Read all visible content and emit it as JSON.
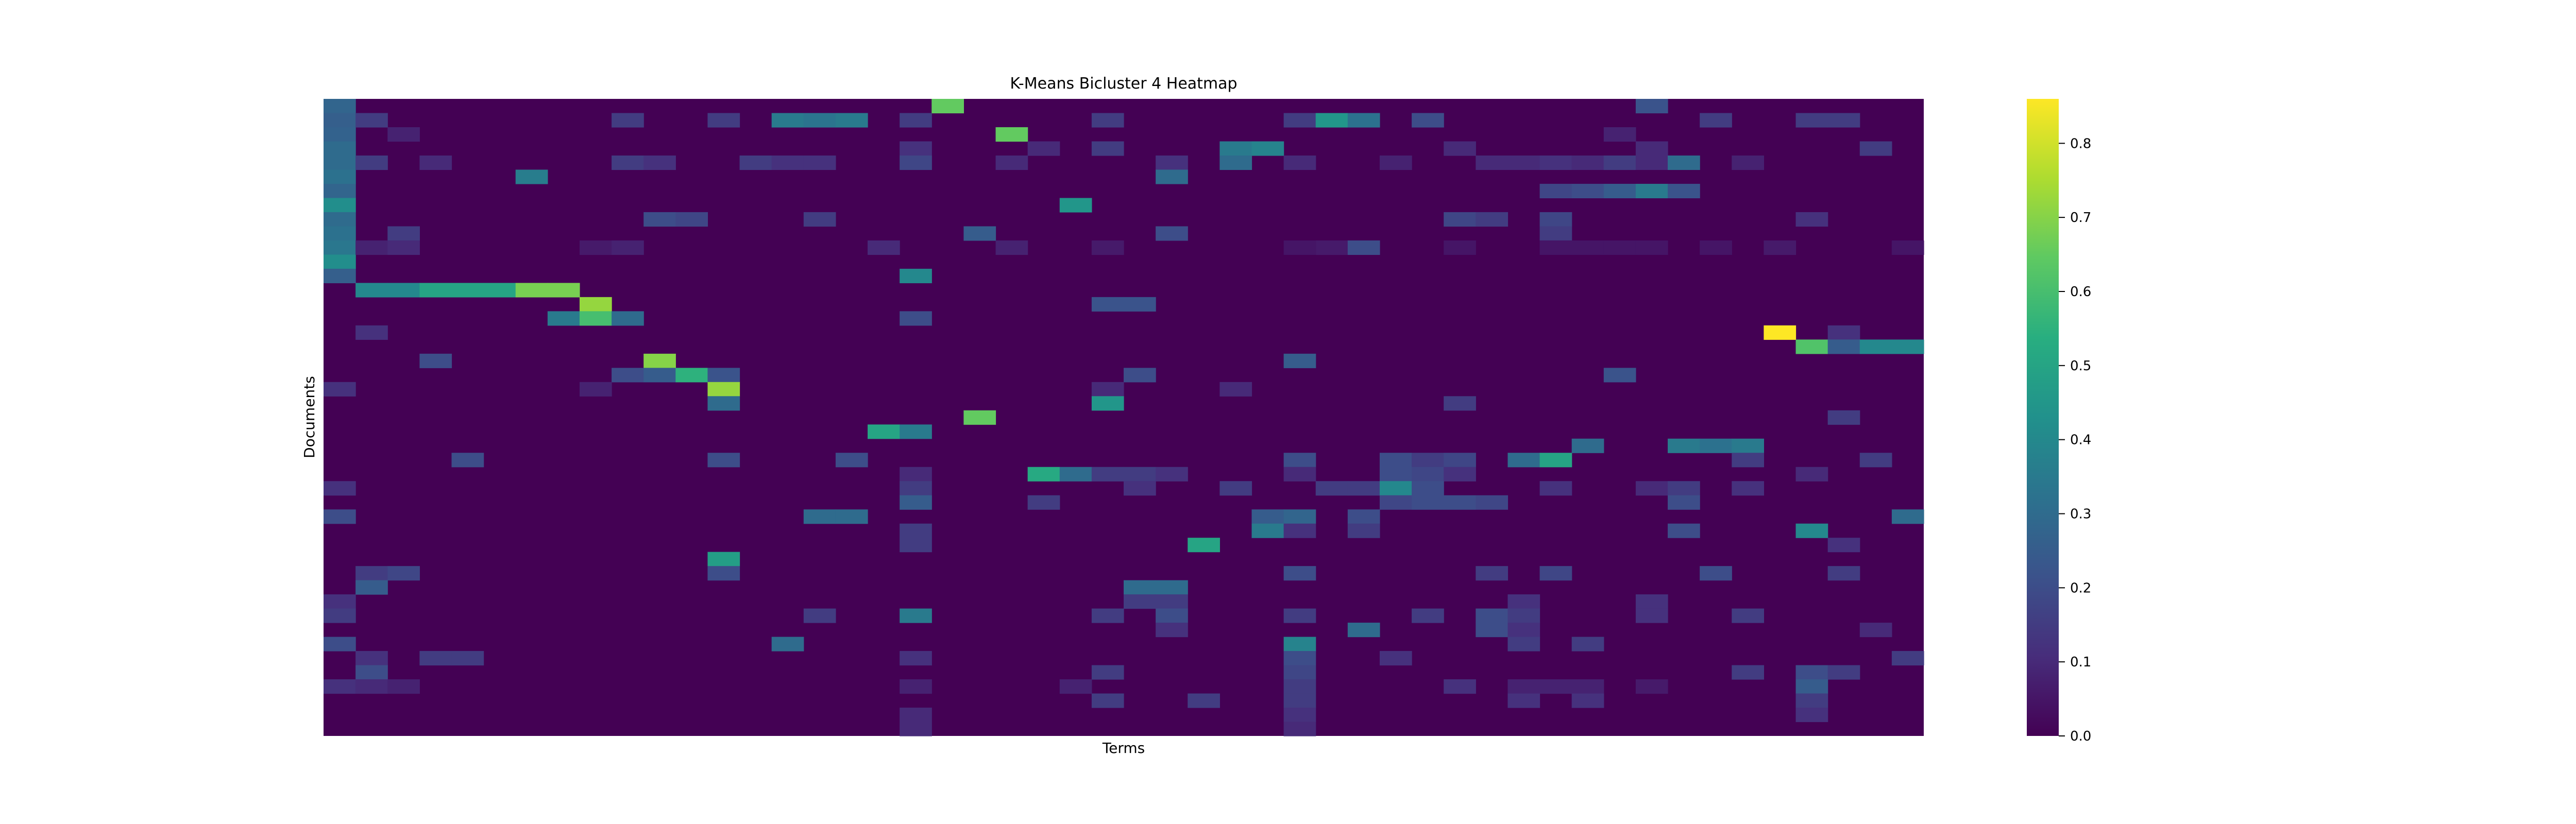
{
  "chart_data": {
    "type": "heatmap",
    "title": "K-Means Bicluster 4 Heatmap",
    "xlabel": "Terms",
    "ylabel": "Documents",
    "colormap": "viridis",
    "vmin": 0.0,
    "vmax": 0.86,
    "colorbar_ticks": [
      0.0,
      0.1,
      0.2,
      0.3,
      0.4,
      0.5,
      0.6,
      0.7,
      0.8
    ],
    "colorbar_tick_labels": [
      "0.0",
      "0.1",
      "0.2",
      "0.3",
      "0.4",
      "0.5",
      "0.6",
      "0.7",
      "0.8"
    ],
    "n_rows": 45,
    "n_cols": 50,
    "x_tick_labels_shown": false,
    "y_tick_labels_shown": false,
    "cells": [
      [
        0,
        0,
        0.28
      ],
      [
        1,
        0,
        0.26
      ],
      [
        2,
        0,
        0.27
      ],
      [
        3,
        0,
        0.3
      ],
      [
        4,
        0,
        0.3
      ],
      [
        5,
        0,
        0.32
      ],
      [
        6,
        0,
        0.28
      ],
      [
        7,
        0,
        0.42
      ],
      [
        8,
        0,
        0.3
      ],
      [
        9,
        0,
        0.32
      ],
      [
        10,
        0,
        0.34
      ],
      [
        11,
        0,
        0.42
      ],
      [
        12,
        0,
        0.26
      ],
      [
        0,
        19,
        0.65
      ],
      [
        0,
        41,
        0.22
      ],
      [
        1,
        14,
        0.35
      ],
      [
        1,
        15,
        0.33
      ],
      [
        1,
        16,
        0.35
      ],
      [
        1,
        18,
        0.15
      ],
      [
        1,
        9,
        0.15
      ],
      [
        1,
        12,
        0.15
      ],
      [
        1,
        24,
        0.15
      ],
      [
        1,
        30,
        0.15
      ],
      [
        1,
        31,
        0.45
      ],
      [
        1,
        32,
        0.32
      ],
      [
        1,
        34,
        0.2
      ],
      [
        1,
        43,
        0.15
      ],
      [
        1,
        46,
        0.15
      ],
      [
        1,
        47,
        0.15
      ],
      [
        1,
        1,
        0.15
      ],
      [
        2,
        2,
        0.08
      ],
      [
        2,
        21,
        0.65
      ],
      [
        2,
        40,
        0.08
      ],
      [
        3,
        22,
        0.1
      ],
      [
        3,
        24,
        0.15
      ],
      [
        3,
        28,
        0.35
      ],
      [
        3,
        29,
        0.38
      ],
      [
        3,
        35,
        0.1
      ],
      [
        3,
        41,
        0.1
      ],
      [
        3,
        48,
        0.15
      ],
      [
        3,
        18,
        0.12
      ],
      [
        4,
        1,
        0.15
      ],
      [
        4,
        3,
        0.1
      ],
      [
        4,
        9,
        0.15
      ],
      [
        4,
        10,
        0.12
      ],
      [
        4,
        13,
        0.15
      ],
      [
        4,
        14,
        0.12
      ],
      [
        4,
        15,
        0.12
      ],
      [
        4,
        18,
        0.18
      ],
      [
        4,
        21,
        0.1
      ],
      [
        4,
        26,
        0.12
      ],
      [
        4,
        28,
        0.3
      ],
      [
        4,
        30,
        0.1
      ],
      [
        4,
        33,
        0.08
      ],
      [
        4,
        36,
        0.1
      ],
      [
        4,
        37,
        0.1
      ],
      [
        4,
        38,
        0.12
      ],
      [
        4,
        39,
        0.1
      ],
      [
        4,
        40,
        0.15
      ],
      [
        4,
        41,
        0.1
      ],
      [
        4,
        42,
        0.3
      ],
      [
        4,
        44,
        0.08
      ],
      [
        5,
        6,
        0.36
      ],
      [
        5,
        26,
        0.3
      ],
      [
        6,
        38,
        0.18
      ],
      [
        6,
        39,
        0.2
      ],
      [
        6,
        40,
        0.25
      ],
      [
        6,
        41,
        0.35
      ],
      [
        6,
        42,
        0.22
      ],
      [
        7,
        23,
        0.45
      ],
      [
        8,
        10,
        0.2
      ],
      [
        8,
        11,
        0.18
      ],
      [
        8,
        15,
        0.15
      ],
      [
        8,
        35,
        0.18
      ],
      [
        8,
        36,
        0.15
      ],
      [
        8,
        38,
        0.18
      ],
      [
        8,
        46,
        0.12
      ],
      [
        9,
        2,
        0.15
      ],
      [
        9,
        20,
        0.25
      ],
      [
        9,
        26,
        0.2
      ],
      [
        9,
        38,
        0.15
      ],
      [
        10,
        1,
        0.08
      ],
      [
        10,
        2,
        0.1
      ],
      [
        10,
        8,
        0.06
      ],
      [
        10,
        9,
        0.08
      ],
      [
        10,
        17,
        0.1
      ],
      [
        10,
        21,
        0.08
      ],
      [
        10,
        24,
        0.06
      ],
      [
        10,
        31,
        0.06
      ],
      [
        10,
        30,
        0.05
      ],
      [
        10,
        35,
        0.05
      ],
      [
        10,
        38,
        0.05
      ],
      [
        10,
        39,
        0.05
      ],
      [
        10,
        40,
        0.05
      ],
      [
        10,
        41,
        0.05
      ],
      [
        10,
        43,
        0.05
      ],
      [
        10,
        45,
        0.06
      ],
      [
        10,
        49,
        0.05
      ],
      [
        10,
        32,
        0.2
      ],
      [
        12,
        18,
        0.4
      ],
      [
        13,
        1,
        0.4
      ],
      [
        13,
        2,
        0.4
      ],
      [
        13,
        3,
        0.5
      ],
      [
        13,
        4,
        0.5
      ],
      [
        13,
        5,
        0.5
      ],
      [
        13,
        6,
        0.68
      ],
      [
        13,
        7,
        0.68
      ],
      [
        14,
        8,
        0.72
      ],
      [
        14,
        24,
        0.22
      ],
      [
        14,
        25,
        0.22
      ],
      [
        15,
        7,
        0.35
      ],
      [
        15,
        8,
        0.6
      ],
      [
        15,
        9,
        0.3
      ],
      [
        15,
        18,
        0.2
      ],
      [
        16,
        1,
        0.12
      ],
      [
        16,
        45,
        0.86
      ],
      [
        16,
        47,
        0.12
      ],
      [
        17,
        46,
        0.62
      ],
      [
        17,
        47,
        0.25
      ],
      [
        17,
        48,
        0.4
      ],
      [
        17,
        49,
        0.4
      ],
      [
        18,
        3,
        0.2
      ],
      [
        18,
        10,
        0.7
      ],
      [
        18,
        30,
        0.25
      ],
      [
        19,
        9,
        0.2
      ],
      [
        19,
        10,
        0.25
      ],
      [
        19,
        11,
        0.55
      ],
      [
        19,
        12,
        0.22
      ],
      [
        19,
        25,
        0.2
      ],
      [
        19,
        40,
        0.22
      ],
      [
        20,
        0,
        0.12
      ],
      [
        20,
        8,
        0.08
      ],
      [
        20,
        12,
        0.72
      ],
      [
        20,
        24,
        0.1
      ],
      [
        20,
        28,
        0.1
      ],
      [
        21,
        12,
        0.3
      ],
      [
        21,
        24,
        0.45
      ],
      [
        21,
        35,
        0.15
      ],
      [
        22,
        20,
        0.65
      ],
      [
        22,
        47,
        0.15
      ],
      [
        23,
        17,
        0.5
      ],
      [
        23,
        18,
        0.35
      ],
      [
        24,
        39,
        0.3
      ],
      [
        24,
        42,
        0.35
      ],
      [
        24,
        43,
        0.32
      ],
      [
        24,
        44,
        0.35
      ],
      [
        25,
        4,
        0.2
      ],
      [
        25,
        12,
        0.2
      ],
      [
        25,
        16,
        0.2
      ],
      [
        25,
        30,
        0.2
      ],
      [
        25,
        33,
        0.2
      ],
      [
        25,
        34,
        0.15
      ],
      [
        25,
        35,
        0.18
      ],
      [
        25,
        37,
        0.3
      ],
      [
        25,
        38,
        0.5
      ],
      [
        25,
        44,
        0.15
      ],
      [
        25,
        48,
        0.15
      ],
      [
        26,
        18,
        0.1
      ],
      [
        26,
        22,
        0.52
      ],
      [
        26,
        23,
        0.3
      ],
      [
        26,
        24,
        0.15
      ],
      [
        26,
        25,
        0.15
      ],
      [
        26,
        26,
        0.12
      ],
      [
        26,
        30,
        0.1
      ],
      [
        26,
        33,
        0.2
      ],
      [
        26,
        34,
        0.18
      ],
      [
        26,
        35,
        0.12
      ],
      [
        26,
        46,
        0.1
      ],
      [
        27,
        0,
        0.12
      ],
      [
        27,
        18,
        0.15
      ],
      [
        27,
        25,
        0.12
      ],
      [
        27,
        28,
        0.15
      ],
      [
        27,
        31,
        0.15
      ],
      [
        27,
        32,
        0.15
      ],
      [
        27,
        33,
        0.4
      ],
      [
        27,
        34,
        0.2
      ],
      [
        27,
        38,
        0.12
      ],
      [
        27,
        41,
        0.1
      ],
      [
        27,
        42,
        0.15
      ],
      [
        27,
        44,
        0.12
      ],
      [
        28,
        18,
        0.25
      ],
      [
        28,
        22,
        0.15
      ],
      [
        28,
        33,
        0.18
      ],
      [
        28,
        34,
        0.2
      ],
      [
        28,
        35,
        0.2
      ],
      [
        28,
        36,
        0.18
      ],
      [
        28,
        42,
        0.2
      ],
      [
        29,
        0,
        0.2
      ],
      [
        29,
        15,
        0.3
      ],
      [
        29,
        16,
        0.3
      ],
      [
        29,
        29,
        0.25
      ],
      [
        29,
        30,
        0.28
      ],
      [
        29,
        32,
        0.2
      ],
      [
        29,
        49,
        0.3
      ],
      [
        30,
        18,
        0.15
      ],
      [
        30,
        29,
        0.35
      ],
      [
        30,
        30,
        0.12
      ],
      [
        30,
        32,
        0.15
      ],
      [
        30,
        42,
        0.2
      ],
      [
        30,
        46,
        0.4
      ],
      [
        31,
        18,
        0.15
      ],
      [
        31,
        27,
        0.5
      ],
      [
        31,
        47,
        0.12
      ],
      [
        32,
        12,
        0.48
      ],
      [
        33,
        1,
        0.15
      ],
      [
        33,
        2,
        0.18
      ],
      [
        33,
        12,
        0.2
      ],
      [
        33,
        30,
        0.2
      ],
      [
        33,
        36,
        0.15
      ],
      [
        33,
        38,
        0.18
      ],
      [
        33,
        43,
        0.2
      ],
      [
        33,
        47,
        0.15
      ],
      [
        34,
        1,
        0.25
      ],
      [
        34,
        25,
        0.3
      ],
      [
        34,
        26,
        0.3
      ],
      [
        35,
        0,
        0.12
      ],
      [
        35,
        25,
        0.15
      ],
      [
        35,
        26,
        0.15
      ],
      [
        35,
        37,
        0.12
      ],
      [
        35,
        41,
        0.12
      ],
      [
        36,
        0,
        0.15
      ],
      [
        36,
        15,
        0.15
      ],
      [
        36,
        18,
        0.35
      ],
      [
        36,
        24,
        0.15
      ],
      [
        36,
        26,
        0.2
      ],
      [
        36,
        30,
        0.15
      ],
      [
        36,
        34,
        0.15
      ],
      [
        36,
        36,
        0.2
      ],
      [
        36,
        37,
        0.15
      ],
      [
        36,
        41,
        0.12
      ],
      [
        36,
        44,
        0.15
      ],
      [
        37,
        26,
        0.12
      ],
      [
        37,
        32,
        0.3
      ],
      [
        37,
        36,
        0.2
      ],
      [
        37,
        37,
        0.12
      ],
      [
        37,
        48,
        0.1
      ],
      [
        38,
        0,
        0.2
      ],
      [
        38,
        14,
        0.3
      ],
      [
        38,
        30,
        0.38
      ],
      [
        38,
        37,
        0.15
      ],
      [
        38,
        39,
        0.15
      ],
      [
        39,
        1,
        0.12
      ],
      [
        39,
        3,
        0.15
      ],
      [
        39,
        4,
        0.15
      ],
      [
        39,
        18,
        0.12
      ],
      [
        39,
        30,
        0.2
      ],
      [
        39,
        33,
        0.12
      ],
      [
        39,
        49,
        0.15
      ],
      [
        40,
        1,
        0.2
      ],
      [
        40,
        24,
        0.15
      ],
      [
        40,
        30,
        0.18
      ],
      [
        40,
        44,
        0.15
      ],
      [
        40,
        46,
        0.2
      ],
      [
        40,
        47,
        0.15
      ],
      [
        41,
        0,
        0.12
      ],
      [
        41,
        1,
        0.1
      ],
      [
        41,
        2,
        0.08
      ],
      [
        41,
        18,
        0.08
      ],
      [
        41,
        23,
        0.08
      ],
      [
        41,
        30,
        0.15
      ],
      [
        41,
        35,
        0.12
      ],
      [
        41,
        37,
        0.08
      ],
      [
        41,
        38,
        0.08
      ],
      [
        41,
        39,
        0.08
      ],
      [
        41,
        41,
        0.06
      ],
      [
        41,
        46,
        0.25
      ],
      [
        42,
        24,
        0.15
      ],
      [
        42,
        27,
        0.15
      ],
      [
        42,
        30,
        0.15
      ],
      [
        42,
        37,
        0.12
      ],
      [
        42,
        39,
        0.12
      ],
      [
        42,
        46,
        0.15
      ],
      [
        43,
        18,
        0.1
      ],
      [
        43,
        30,
        0.12
      ],
      [
        43,
        46,
        0.12
      ],
      [
        44,
        18,
        0.1
      ],
      [
        44,
        30,
        0.1
      ]
    ]
  }
}
